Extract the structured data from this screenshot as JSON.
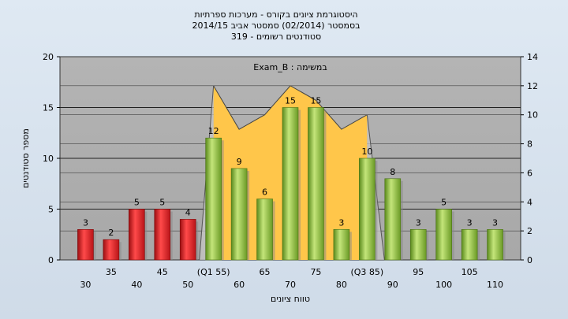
{
  "chart_data": {
    "type": "bar",
    "title_lines": [
      "היסטוגרמת ציונים בקורס - מערכות ספרתיות",
      "בסמסטר  (02/2014)  סמסטר אביב 2014/15",
      "סטודנטים רשומים - 319"
    ],
    "annotation": "במשימה : Exam_B",
    "xlabel": "טווח ציונים",
    "ylabel": "מספר סטודנטים",
    "categories": [
      "30",
      "35",
      "40",
      "45",
      "50",
      "(Q1 55)",
      "60",
      "65",
      "70",
      "75",
      "80",
      "(Q3 85)",
      "90",
      "95",
      "100",
      "105",
      "110"
    ],
    "values": [
      3,
      2,
      5,
      5,
      4,
      12,
      9,
      6,
      15,
      15,
      3,
      10,
      8,
      3,
      5,
      3,
      3
    ],
    "value_labels": [
      "3",
      "2",
      "5",
      "5",
      "4",
      "12",
      "9",
      "6",
      "15",
      "15",
      "3",
      "10",
      "8",
      "3",
      "5",
      "3",
      "3"
    ],
    "bar_colors": [
      "#e8262a",
      "#e8262a",
      "#e8262a",
      "#e8262a",
      "#e8262a",
      "#8cbf3a",
      "#8cbf3a",
      "#8cbf3a",
      "#8cbf3a",
      "#8cbf3a",
      "#8cbf3a",
      "#8cbf3a",
      "#8cbf3a",
      "#8cbf3a",
      "#8cbf3a",
      "#8cbf3a",
      "#8cbf3a"
    ],
    "ylim": [
      0,
      20
    ],
    "yticks": [
      "0",
      "5",
      "10",
      "15",
      "20"
    ],
    "y2lim": [
      0,
      14
    ],
    "y2ticks": [
      "0",
      "2",
      "4",
      "6",
      "8",
      "10",
      "12",
      "14"
    ],
    "area_series": {
      "values": [
        12,
        9,
        10,
        12,
        11,
        9,
        10
      ],
      "start_index": 5,
      "color": "#ffc64a"
    },
    "plot_background": "#b0b0b0",
    "grid": true
  }
}
